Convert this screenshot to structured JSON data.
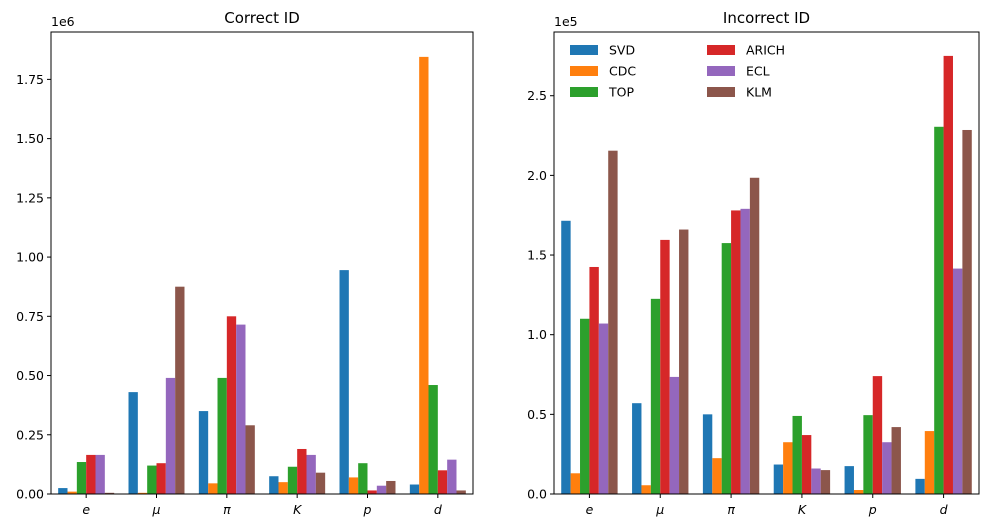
{
  "chart_data": [
    {
      "type": "bar",
      "title": "Correct ID",
      "xlabel": "",
      "ylabel": "",
      "scale_label": "1e6",
      "categories": [
        "e",
        "μ",
        "π",
        "K",
        "p",
        "d"
      ],
      "ylim": [
        0,
        1.95
      ],
      "yticks": [
        "0.00",
        "0.25",
        "0.50",
        "0.75",
        "1.00",
        "1.25",
        "1.50",
        "1.75"
      ],
      "series": [
        {
          "name": "SVD",
          "color": "#1f77b4",
          "values": [
            0.025,
            0.43,
            0.35,
            0.075,
            0.945,
            0.04
          ]
        },
        {
          "name": "CDC",
          "color": "#ff7f0e",
          "values": [
            0.01,
            0.005,
            0.045,
            0.05,
            0.07,
            1.845
          ]
        },
        {
          "name": "TOP",
          "color": "#2ca02c",
          "values": [
            0.135,
            0.12,
            0.49,
            0.115,
            0.13,
            0.46
          ]
        },
        {
          "name": "ARICH",
          "color": "#d62728",
          "values": [
            0.165,
            0.13,
            0.75,
            0.19,
            0.015,
            0.1
          ]
        },
        {
          "name": "ECL",
          "color": "#9467bd",
          "values": [
            0.165,
            0.49,
            0.715,
            0.165,
            0.035,
            0.145
          ]
        },
        {
          "name": "KLM",
          "color": "#8c564b",
          "values": [
            0.005,
            0.875,
            0.29,
            0.09,
            0.055,
            0.015
          ]
        }
      ]
    },
    {
      "type": "bar",
      "title": "Incorrect ID",
      "xlabel": "",
      "ylabel": "",
      "scale_label": "1e5",
      "categories": [
        "e",
        "μ",
        "π",
        "K",
        "p",
        "d"
      ],
      "ylim": [
        0,
        2.9
      ],
      "yticks": [
        "0.0",
        "0.5",
        "1.0",
        "1.5",
        "2.0",
        "2.5"
      ],
      "legend": {
        "position": "top-left",
        "columns": 2
      },
      "series": [
        {
          "name": "SVD",
          "color": "#1f77b4",
          "values": [
            1.715,
            0.57,
            0.5,
            0.185,
            0.175,
            0.095
          ]
        },
        {
          "name": "CDC",
          "color": "#ff7f0e",
          "values": [
            0.13,
            0.055,
            0.225,
            0.325,
            0.025,
            0.395
          ]
        },
        {
          "name": "TOP",
          "color": "#2ca02c",
          "values": [
            1.1,
            1.225,
            1.575,
            0.49,
            0.495,
            2.305
          ]
        },
        {
          "name": "ARICH",
          "color": "#d62728",
          "values": [
            1.425,
            1.595,
            1.78,
            0.37,
            0.74,
            2.75
          ]
        },
        {
          "name": "ECL",
          "color": "#9467bd",
          "values": [
            1.07,
            0.735,
            1.79,
            0.16,
            0.325,
            1.415
          ]
        },
        {
          "name": "KLM",
          "color": "#8c564b",
          "values": [
            2.155,
            1.66,
            1.985,
            0.15,
            0.42,
            2.285
          ]
        }
      ]
    }
  ]
}
